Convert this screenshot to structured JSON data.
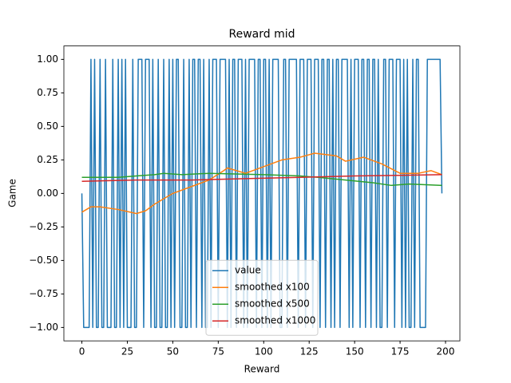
{
  "chart_data": {
    "type": "line",
    "title": "Reward mid",
    "xlabel": "Reward",
    "ylabel": "Game",
    "xlim": [
      -9.9,
      207.9
    ],
    "ylim": [
      -1.1,
      1.1
    ],
    "xticks": [
      0,
      25,
      50,
      75,
      100,
      125,
      150,
      175,
      200
    ],
    "yticks": [
      {
        "value": -1,
        "label": "−1.00"
      },
      {
        "value": -0.75,
        "label": "−0.75"
      },
      {
        "value": -0.5,
        "label": "−0.50"
      },
      {
        "value": -0.25,
        "label": "−0.25"
      },
      {
        "value": 0,
        "label": "0.00"
      },
      {
        "value": 0.25,
        "label": "0.25"
      },
      {
        "value": 0.5,
        "label": "0.50"
      },
      {
        "value": 0.75,
        "label": "0.75"
      },
      {
        "value": 1,
        "label": "1.00"
      }
    ],
    "legend": "lower center",
    "x": [
      0,
      1,
      2,
      3,
      4,
      5,
      6,
      7,
      8,
      9,
      10,
      11,
      12,
      13,
      14,
      15,
      16,
      17,
      18,
      19,
      20,
      21,
      22,
      23,
      24,
      25,
      26,
      27,
      28,
      29,
      30,
      31,
      32,
      33,
      34,
      35,
      36,
      37,
      38,
      39,
      40,
      41,
      42,
      43,
      44,
      45,
      46,
      47,
      48,
      49,
      50,
      51,
      52,
      53,
      54,
      55,
      56,
      57,
      58,
      59,
      60,
      61,
      62,
      63,
      64,
      65,
      66,
      67,
      68,
      69,
      70,
      71,
      72,
      73,
      74,
      75,
      76,
      77,
      78,
      79,
      80,
      81,
      82,
      83,
      84,
      85,
      86,
      87,
      88,
      89,
      90,
      91,
      92,
      93,
      94,
      95,
      96,
      97,
      98,
      99,
      100,
      101,
      102,
      103,
      104,
      105,
      106,
      107,
      108,
      109,
      110,
      111,
      112,
      113,
      114,
      115,
      116,
      117,
      118,
      119,
      120,
      121,
      122,
      123,
      124,
      125,
      126,
      127,
      128,
      129,
      130,
      131,
      132,
      133,
      134,
      135,
      136,
      137,
      138,
      139,
      140,
      141,
      142,
      143,
      144,
      145,
      146,
      147,
      148,
      149,
      150,
      151,
      152,
      153,
      154,
      155,
      156,
      157,
      158,
      159,
      160,
      161,
      162,
      163,
      164,
      165,
      166,
      167,
      168,
      169,
      170,
      171,
      172,
      173,
      174,
      175,
      176,
      177,
      178,
      179,
      180,
      181,
      182,
      183,
      184,
      185,
      186,
      187,
      188,
      189,
      190,
      191,
      192,
      193,
      194,
      195,
      196,
      197,
      198
    ],
    "series": [
      {
        "name": "value",
        "color": "#1f77b4",
        "values": [
          0,
          -1,
          -1,
          -1,
          -1,
          1,
          -1,
          1,
          -1,
          -1,
          1,
          -1,
          -1,
          1,
          -1,
          -1,
          -1,
          1,
          -1,
          -1,
          1,
          -1,
          1,
          -1,
          1,
          -1,
          -1,
          -1,
          1,
          -1,
          -1,
          1,
          1,
          1,
          -1,
          1,
          1,
          1,
          -1,
          1,
          -1,
          -1,
          1,
          -1,
          -1,
          1,
          -1,
          -1,
          1,
          -1,
          1,
          -1,
          1,
          1,
          -1,
          -1,
          1,
          -1,
          -1,
          1,
          -1,
          1,
          1,
          -1,
          1,
          1,
          -1,
          1,
          -1,
          -1,
          1,
          -1,
          1,
          1,
          1,
          -1,
          1,
          1,
          1,
          1,
          -1,
          1,
          -1,
          1,
          1,
          -1,
          1,
          1,
          1,
          -1,
          1,
          -1,
          1,
          1,
          1,
          1,
          -1,
          1,
          1,
          -1,
          1,
          1,
          -1,
          1,
          -1,
          1,
          1,
          1,
          1,
          -1,
          -1,
          1,
          1,
          -1,
          1,
          1,
          1,
          1,
          1,
          -1,
          1,
          1,
          1,
          -1,
          1,
          1,
          1,
          -1,
          1,
          1,
          1,
          -1,
          1,
          1,
          -1,
          1,
          1,
          -1,
          1,
          -1,
          1,
          1,
          -1,
          1,
          1,
          1,
          1,
          -1,
          1,
          -1,
          1,
          1,
          1,
          -1,
          1,
          1,
          -1,
          1,
          1,
          -1,
          1,
          1,
          -1,
          1,
          -1,
          -1,
          1,
          1,
          -1,
          1,
          1,
          1,
          -1,
          1,
          1,
          1,
          -1,
          1,
          -1,
          1,
          -1,
          -1,
          1,
          -1,
          1,
          1,
          -1,
          -1,
          -1,
          -1,
          1,
          1,
          1,
          1,
          1,
          1,
          1,
          1,
          0
        ]
      },
      {
        "name": "smoothed x100",
        "color": "#ff7f0e",
        "x": [
          0,
          5,
          10,
          20,
          30,
          35,
          40,
          50,
          60,
          70,
          78,
          80,
          90,
          100,
          110,
          120,
          128,
          140,
          145,
          155,
          165,
          175,
          185,
          192,
          198
        ],
        "values": [
          -0.14,
          -0.1,
          -0.1,
          -0.12,
          -0.15,
          -0.13,
          -0.08,
          0,
          0.05,
          0.1,
          0.17,
          0.19,
          0.15,
          0.2,
          0.25,
          0.27,
          0.3,
          0.28,
          0.24,
          0.27,
          0.22,
          0.15,
          0.15,
          0.17,
          0.14
        ]
      },
      {
        "name": "smoothed x500",
        "color": "#2ca02c",
        "x": [
          0,
          20,
          30,
          40,
          45,
          55,
          70,
          100,
          120,
          130,
          145,
          160,
          170,
          180,
          198
        ],
        "values": [
          0.12,
          0.12,
          0.13,
          0.14,
          0.15,
          0.14,
          0.15,
          0.14,
          0.13,
          0.12,
          0.1,
          0.08,
          0.06,
          0.07,
          0.06
        ]
      },
      {
        "name": "smoothed x1000",
        "color": "#d62728",
        "x": [
          0,
          30,
          60,
          90,
          120,
          150,
          198
        ],
        "values": [
          0.09,
          0.1,
          0.1,
          0.11,
          0.12,
          0.13,
          0.14
        ]
      }
    ]
  }
}
